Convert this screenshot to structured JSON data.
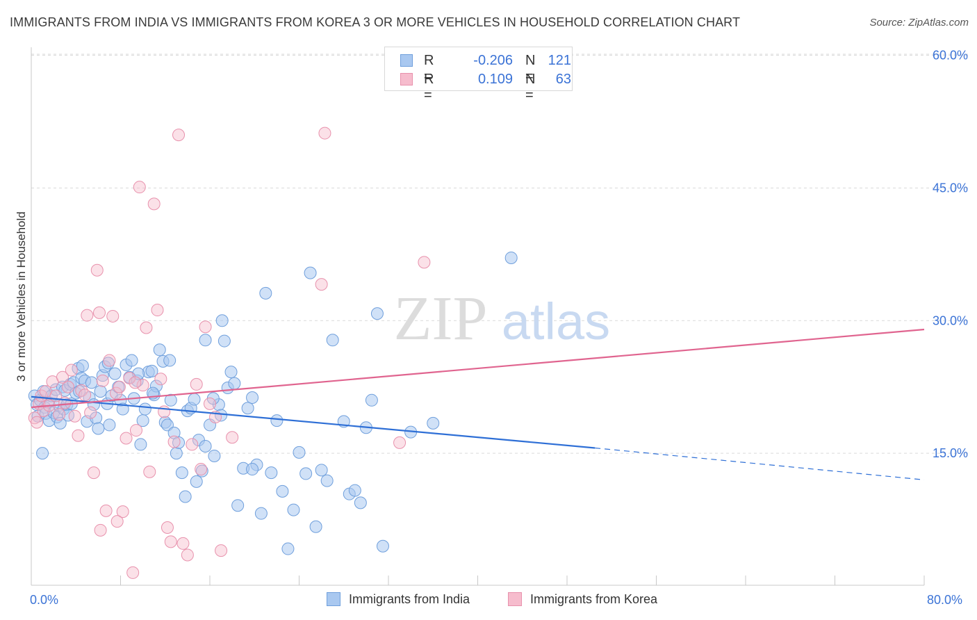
{
  "title": "IMMIGRANTS FROM INDIA VS IMMIGRANTS FROM KOREA 3 OR MORE VEHICLES IN HOUSEHOLD CORRELATION CHART",
  "source": "Source: ZipAtlas.com",
  "watermark": {
    "zip": "ZIP",
    "atlas": "atlas"
  },
  "legend_top": {
    "r_label": "R =",
    "n_label": "N =",
    "india": {
      "r": "-0.206",
      "n": "121"
    },
    "korea": {
      "r": "0.109",
      "n": "63"
    }
  },
  "legend_bottom": {
    "india": "Immigrants from India",
    "korea": "Immigrants from Korea"
  },
  "colors": {
    "india_fill": "#a9c8f0",
    "india_stroke": "#6f9fdc",
    "india_line": "#2e6fd6",
    "korea_fill": "#f6bccd",
    "korea_stroke": "#e891ac",
    "korea_line": "#e0648f",
    "tick_text": "#3b73d6",
    "grid": "#d9d9d9"
  },
  "chart_data": {
    "type": "scatter",
    "title": "IMMIGRANTS FROM INDIA VS IMMIGRANTS FROM KOREA 3 OR MORE VEHICLES IN HOUSEHOLD CORRELATION CHART",
    "xlabel": "",
    "ylabel": "3 or more Vehicles in Household",
    "xlim": [
      0,
      80
    ],
    "ylim": [
      0,
      63
    ],
    "x_tick_labels": [
      "0.0%",
      "80.0%"
    ],
    "y_ticks": [
      15,
      30,
      45,
      60
    ],
    "y_tick_labels": [
      "15.0%",
      "30.0%",
      "45.0%",
      "60.0%"
    ],
    "legend": "top-center",
    "grid": true,
    "series": [
      {
        "name": "Immigrants from India",
        "R": -0.206,
        "N": 121,
        "trend": {
          "x": [
            0,
            50.5
          ],
          "y": [
            21.4,
            15.6
          ],
          "dashed_to": [
            80,
            12.0
          ]
        },
        "points": [
          [
            0.3,
            21.5
          ],
          [
            0.5,
            20.5
          ],
          [
            0.6,
            19.2
          ],
          [
            0.8,
            21.0
          ],
          [
            1.0,
            15.0
          ],
          [
            1.1,
            22.0
          ],
          [
            1.2,
            20.2
          ],
          [
            1.3,
            19.5
          ],
          [
            1.5,
            20.8
          ],
          [
            1.6,
            18.7
          ],
          [
            1.8,
            21.5
          ],
          [
            2.0,
            19.6
          ],
          [
            2.2,
            22.2
          ],
          [
            2.3,
            19.1
          ],
          [
            2.5,
            20.4
          ],
          [
            2.6,
            18.4
          ],
          [
            2.8,
            22.5
          ],
          [
            2.9,
            20.0
          ],
          [
            3.0,
            22.1
          ],
          [
            3.2,
            20.5
          ],
          [
            3.3,
            19.3
          ],
          [
            3.5,
            22.8
          ],
          [
            3.6,
            20.6
          ],
          [
            3.8,
            23.0
          ],
          [
            4.0,
            21.8
          ],
          [
            4.2,
            24.6
          ],
          [
            4.3,
            22.0
          ],
          [
            4.5,
            23.5
          ],
          [
            4.8,
            23.2
          ],
          [
            5.0,
            18.6
          ],
          [
            5.2,
            21.3
          ],
          [
            5.4,
            23.0
          ],
          [
            5.6,
            20.5
          ],
          [
            5.8,
            19.0
          ],
          [
            6.0,
            17.8
          ],
          [
            6.2,
            22.0
          ],
          [
            6.4,
            23.8
          ],
          [
            6.6,
            24.8
          ],
          [
            6.8,
            20.6
          ],
          [
            7.0,
            18.2
          ],
          [
            7.2,
            21.5
          ],
          [
            7.5,
            24.0
          ],
          [
            7.8,
            22.5
          ],
          [
            8.0,
            21.0
          ],
          [
            8.2,
            20.0
          ],
          [
            8.5,
            25.0
          ],
          [
            8.8,
            23.6
          ],
          [
            9.0,
            25.5
          ],
          [
            9.2,
            21.2
          ],
          [
            9.5,
            23.2
          ],
          [
            9.8,
            16.0
          ],
          [
            10.0,
            18.7
          ],
          [
            10.2,
            20.0
          ],
          [
            10.5,
            24.2
          ],
          [
            10.8,
            24.3
          ],
          [
            11.0,
            21.6
          ],
          [
            11.2,
            22.6
          ],
          [
            11.5,
            26.7
          ],
          [
            11.8,
            25.4
          ],
          [
            12.0,
            18.5
          ],
          [
            12.2,
            18.2
          ],
          [
            12.5,
            21.0
          ],
          [
            12.8,
            17.3
          ],
          [
            13.0,
            15.0
          ],
          [
            13.2,
            16.2
          ],
          [
            13.5,
            12.8
          ],
          [
            13.8,
            10.1
          ],
          [
            14.0,
            19.8
          ],
          [
            14.3,
            20.1
          ],
          [
            14.6,
            21.1
          ],
          [
            14.8,
            11.8
          ],
          [
            15.0,
            16.5
          ],
          [
            15.3,
            13.0
          ],
          [
            15.6,
            15.8
          ],
          [
            16.0,
            18.2
          ],
          [
            16.4,
            14.7
          ],
          [
            16.8,
            20.5
          ],
          [
            17.0,
            19.3
          ],
          [
            17.3,
            27.7
          ],
          [
            17.6,
            22.4
          ],
          [
            17.9,
            24.2
          ],
          [
            18.2,
            22.9
          ],
          [
            18.5,
            9.1
          ],
          [
            19.0,
            13.3
          ],
          [
            19.4,
            20.1
          ],
          [
            19.8,
            21.3
          ],
          [
            20.2,
            13.7
          ],
          [
            20.6,
            8.2
          ],
          [
            21.0,
            33.1
          ],
          [
            21.5,
            12.8
          ],
          [
            22.0,
            18.7
          ],
          [
            22.5,
            10.7
          ],
          [
            23.0,
            4.2
          ],
          [
            23.5,
            8.6
          ],
          [
            24.0,
            15.1
          ],
          [
            24.6,
            12.7
          ],
          [
            25.0,
            35.4
          ],
          [
            25.5,
            6.7
          ],
          [
            26.0,
            13.1
          ],
          [
            26.5,
            11.9
          ],
          [
            27.0,
            27.8
          ],
          [
            28.0,
            18.6
          ],
          [
            28.5,
            10.4
          ],
          [
            29.0,
            10.8
          ],
          [
            29.5,
            9.4
          ],
          [
            30.0,
            17.9
          ],
          [
            30.5,
            21.0
          ],
          [
            31.0,
            30.8
          ],
          [
            31.5,
            4.5
          ],
          [
            34.0,
            17.4
          ],
          [
            36.0,
            18.4
          ],
          [
            43.0,
            37.1
          ],
          [
            4.6,
            24.9
          ],
          [
            6.9,
            25.2
          ],
          [
            9.6,
            24.0
          ],
          [
            12.4,
            25.5
          ],
          [
            15.6,
            27.8
          ],
          [
            16.3,
            21.2
          ],
          [
            17.1,
            30.0
          ],
          [
            19.8,
            13.2
          ],
          [
            10.9,
            21.8
          ]
        ]
      },
      {
        "name": "Immigrants from Korea",
        "R": 0.109,
        "N": 63,
        "trend": {
          "x": [
            0,
            80
          ],
          "y": [
            20.2,
            29.0
          ]
        },
        "points": [
          [
            0.3,
            19.0
          ],
          [
            0.5,
            18.5
          ],
          [
            0.7,
            20.6
          ],
          [
            0.9,
            21.5
          ],
          [
            1.1,
            19.8
          ],
          [
            1.3,
            22.0
          ],
          [
            1.6,
            20.4
          ],
          [
            1.9,
            23.1
          ],
          [
            2.2,
            21.5
          ],
          [
            2.5,
            19.4
          ],
          [
            2.8,
            23.6
          ],
          [
            3.0,
            20.7
          ],
          [
            3.3,
            22.5
          ],
          [
            3.6,
            24.4
          ],
          [
            3.9,
            19.2
          ],
          [
            4.2,
            17.0
          ],
          [
            4.5,
            22.1
          ],
          [
            4.8,
            21.6
          ],
          [
            5.0,
            30.6
          ],
          [
            5.3,
            19.6
          ],
          [
            5.6,
            12.8
          ],
          [
            5.9,
            35.7
          ],
          [
            6.1,
            30.9
          ],
          [
            6.4,
            23.2
          ],
          [
            6.7,
            8.5
          ],
          [
            7.0,
            25.5
          ],
          [
            7.3,
            30.5
          ],
          [
            7.6,
            21.8
          ],
          [
            7.9,
            22.5
          ],
          [
            8.2,
            8.4
          ],
          [
            8.5,
            16.7
          ],
          [
            8.8,
            23.5
          ],
          [
            9.1,
            1.5
          ],
          [
            9.4,
            17.6
          ],
          [
            9.7,
            45.1
          ],
          [
            10.0,
            22.7
          ],
          [
            10.3,
            29.2
          ],
          [
            10.6,
            12.9
          ],
          [
            11.0,
            43.2
          ],
          [
            11.3,
            31.2
          ],
          [
            11.6,
            23.4
          ],
          [
            11.9,
            19.7
          ],
          [
            12.2,
            6.6
          ],
          [
            12.5,
            5.0
          ],
          [
            12.8,
            16.3
          ],
          [
            13.2,
            51.0
          ],
          [
            13.6,
            4.8
          ],
          [
            14.0,
            3.5
          ],
          [
            14.4,
            16.0
          ],
          [
            14.8,
            22.8
          ],
          [
            15.2,
            13.2
          ],
          [
            15.6,
            29.3
          ],
          [
            16.0,
            20.6
          ],
          [
            16.5,
            19.1
          ],
          [
            17.0,
            4.0
          ],
          [
            18.0,
            16.8
          ],
          [
            26.0,
            34.1
          ],
          [
            26.3,
            51.2
          ],
          [
            33.0,
            16.2
          ],
          [
            35.2,
            36.6
          ],
          [
            6.2,
            6.3
          ],
          [
            7.7,
            7.3
          ],
          [
            9.3,
            23.0
          ]
        ]
      }
    ]
  }
}
